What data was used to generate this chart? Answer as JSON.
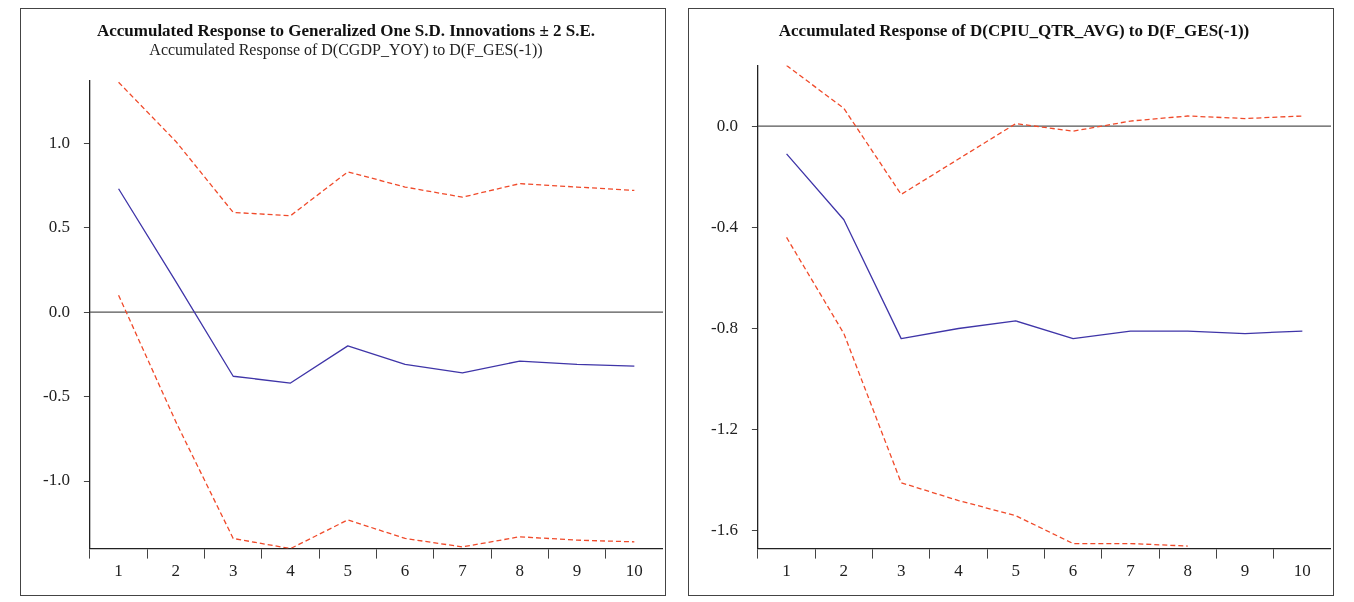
{
  "chart_data": [
    {
      "type": "line",
      "title": "Accumulated Response to Generalized One S.D. Innovations ± 2 S.E.",
      "subtitle": "Accumulated Response of D(CGDP_YOY) to D(F_GES(-1))",
      "categories": [
        "1",
        "2",
        "3",
        "4",
        "5",
        "6",
        "7",
        "8",
        "9",
        "10"
      ],
      "series": [
        {
          "color": "#f04a2a",
          "line_style": "dashed",
          "values": [
            1.36,
            1.01,
            0.59,
            0.57,
            0.83,
            0.74,
            0.68,
            0.76,
            0.74,
            0.72
          ]
        },
        {
          "color": "#3f35a8",
          "line_style": "solid",
          "values": [
            0.73,
            0.18,
            -0.38,
            -0.42,
            -0.2,
            -0.31,
            -0.36,
            -0.29,
            -0.31,
            -0.32
          ]
        },
        {
          "color": "#f04a2a",
          "line_style": "dashed",
          "values": [
            0.1,
            -0.65,
            -1.34,
            -1.4,
            -1.23,
            -1.34,
            -1.39,
            -1.33,
            -1.35,
            -1.36
          ]
        }
      ],
      "ylim": [
        -1.4,
        1.37
      ],
      "yticks": [
        {
          "value": -1.0,
          "label": "-1.0"
        },
        {
          "value": -0.5,
          "label": "-0.5"
        },
        {
          "value": 0,
          "label": "0.0"
        },
        {
          "value": 0.5,
          "label": "0.5"
        },
        {
          "value": 1.0,
          "label": "1.0"
        }
      ],
      "ref_lines": [
        {
          "axis": "y",
          "value": 0,
          "color": "#555555"
        }
      ],
      "grid": false,
      "legend": false,
      "marker": "none"
    },
    {
      "type": "line",
      "title": "Accumulated Response of D(CPIU_QTR_AVG) to D(F_GES(-1))",
      "categories": [
        "1",
        "2",
        "3",
        "4",
        "5",
        "6",
        "7",
        "8",
        "9",
        "10"
      ],
      "series": [
        {
          "color": "#f04a2a",
          "line_style": "dashed",
          "values": [
            0.24,
            0.07,
            -0.27,
            -0.13,
            0.01,
            -0.02,
            0.02,
            0.04,
            0.03,
            0.04
          ]
        },
        {
          "color": "#3f35a8",
          "line_style": "solid",
          "values": [
            -0.11,
            -0.37,
            -0.84,
            -0.8,
            -0.77,
            -0.84,
            -0.81,
            -0.81,
            -0.82,
            -0.81
          ]
        },
        {
          "color": "#f04a2a",
          "line_style": "dashed",
          "values": [
            -0.44,
            -0.82,
            -1.41,
            -1.48,
            -1.54,
            -1.65,
            -1.65,
            -1.66,
            null,
            null
          ]
        }
      ],
      "ylim": [
        -1.67,
        0.24
      ],
      "yticks": [
        {
          "value": -1.6,
          "label": "-1.6"
        },
        {
          "value": -1.2,
          "label": "-1.2"
        },
        {
          "value": -0.8,
          "label": "-0.8"
        },
        {
          "value": -0.4,
          "label": "-0.4"
        },
        {
          "value": 0,
          "label": "0.0"
        }
      ],
      "ref_lines": [
        {
          "axis": "y",
          "value": 0,
          "color": "#555555"
        }
      ],
      "grid": false,
      "legend": false,
      "marker": "none"
    }
  ]
}
